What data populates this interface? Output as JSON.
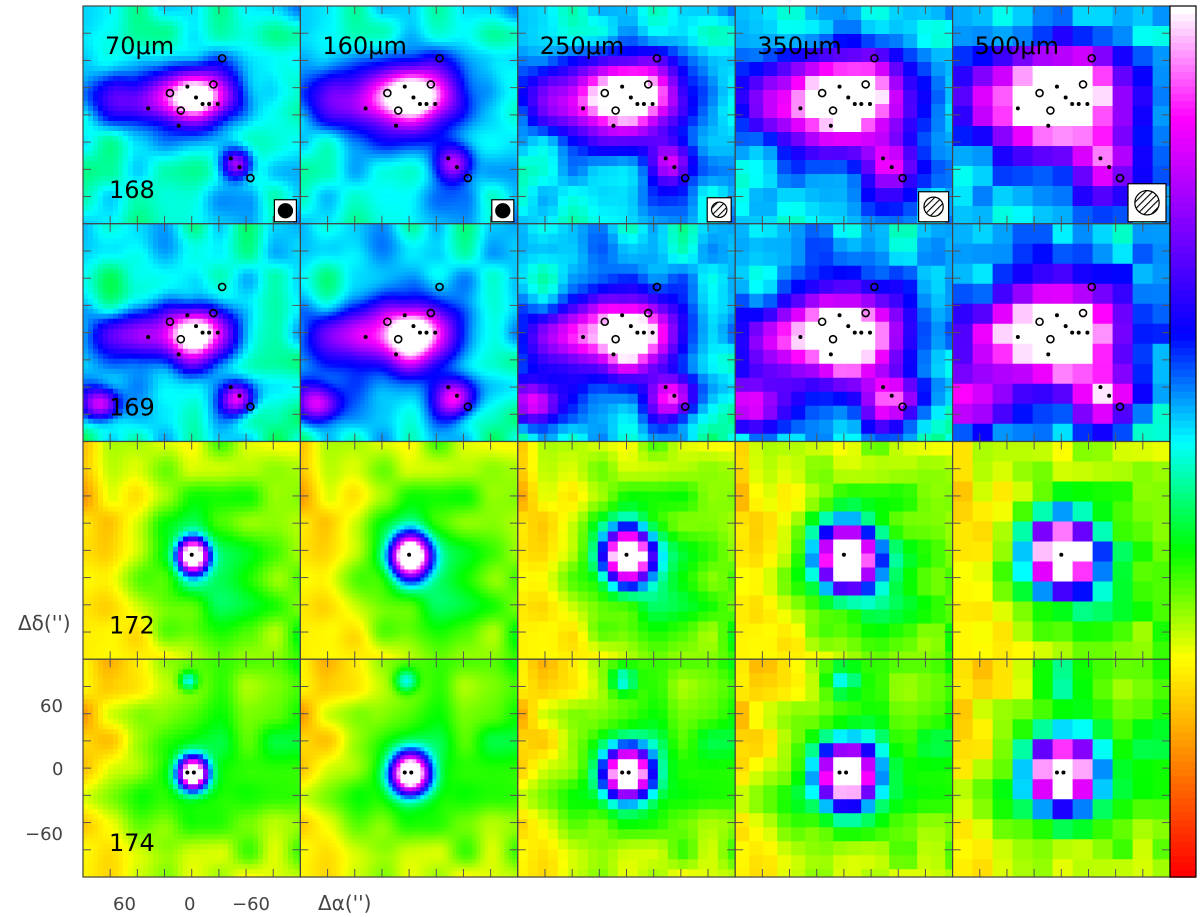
{
  "figure": {
    "columns": [
      {
        "label": "70μm",
        "beam": "filled"
      },
      {
        "label": "160μm",
        "beam": "filled"
      },
      {
        "label": "250μm",
        "beam": "hatched"
      },
      {
        "label": "350μm",
        "beam": "hatched"
      },
      {
        "label": "500μm",
        "beam": "hatched"
      }
    ],
    "rows": [
      {
        "id": "168",
        "style": "complex"
      },
      {
        "id": "169",
        "style": "complex2"
      },
      {
        "id": "172",
        "style": "compact"
      },
      {
        "id": "174",
        "style": "compact2"
      }
    ],
    "axes": {
      "xlabel": "Δα('')",
      "ylabel": "Δδ('')",
      "xticks": [
        "60",
        "0",
        "−60"
      ],
      "yticks": [
        "60",
        "0",
        "−60"
      ]
    },
    "colors": {
      "colormap": [
        "#ff0000",
        "#ff7f00",
        "#ffff00",
        "#00ff00",
        "#00ffff",
        "#0000ff",
        "#8000ff",
        "#ff00ff",
        "#ffffff"
      ]
    }
  }
}
